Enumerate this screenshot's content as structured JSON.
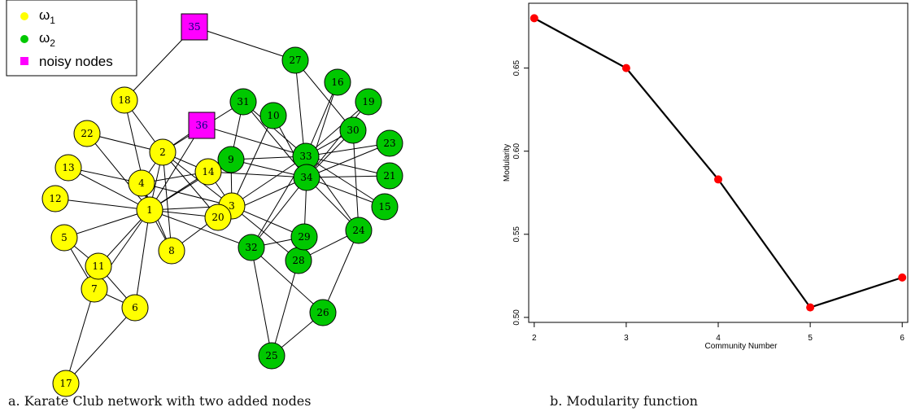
{
  "network": {
    "caption": "a. Karate Club network with two added nodes",
    "legend": [
      {
        "label": "ω",
        "sub": "1",
        "color": "#ffff00",
        "shape": "circle"
      },
      {
        "label": "ω",
        "sub": "2",
        "color": "#00c800",
        "shape": "circle"
      },
      {
        "label": "noisy nodes",
        "color": "#ff00ff",
        "shape": "square"
      }
    ],
    "colors": {
      "group1": "#ffff00",
      "group2": "#00c800",
      "noisy": "#ff00ff",
      "edge": "#000000"
    },
    "nodes": [
      {
        "id": "1",
        "group": 1
      },
      {
        "id": "2",
        "group": 1
      },
      {
        "id": "3",
        "group": 1
      },
      {
        "id": "4",
        "group": 1
      },
      {
        "id": "5",
        "group": 1
      },
      {
        "id": "6",
        "group": 1
      },
      {
        "id": "7",
        "group": 1
      },
      {
        "id": "8",
        "group": 1
      },
      {
        "id": "9",
        "group": 2
      },
      {
        "id": "10",
        "group": 2
      },
      {
        "id": "11",
        "group": 1
      },
      {
        "id": "12",
        "group": 1
      },
      {
        "id": "13",
        "group": 1
      },
      {
        "id": "14",
        "group": 1
      },
      {
        "id": "15",
        "group": 2
      },
      {
        "id": "16",
        "group": 2
      },
      {
        "id": "17",
        "group": 1
      },
      {
        "id": "18",
        "group": 1
      },
      {
        "id": "19",
        "group": 2
      },
      {
        "id": "20",
        "group": 1
      },
      {
        "id": "21",
        "group": 2
      },
      {
        "id": "22",
        "group": 1
      },
      {
        "id": "23",
        "group": 2
      },
      {
        "id": "24",
        "group": 2
      },
      {
        "id": "25",
        "group": 2
      },
      {
        "id": "26",
        "group": 2
      },
      {
        "id": "27",
        "group": 2
      },
      {
        "id": "28",
        "group": 2
      },
      {
        "id": "29",
        "group": 2
      },
      {
        "id": "30",
        "group": 2
      },
      {
        "id": "31",
        "group": 2
      },
      {
        "id": "32",
        "group": 2
      },
      {
        "id": "33",
        "group": 2
      },
      {
        "id": "34",
        "group": 2
      },
      {
        "id": "35",
        "group": "noisy"
      },
      {
        "id": "36",
        "group": "noisy"
      }
    ],
    "edges": [
      [
        "1",
        "2"
      ],
      [
        "1",
        "3"
      ],
      [
        "1",
        "4"
      ],
      [
        "1",
        "5"
      ],
      [
        "1",
        "6"
      ],
      [
        "1",
        "7"
      ],
      [
        "1",
        "8"
      ],
      [
        "1",
        "9"
      ],
      [
        "1",
        "11"
      ],
      [
        "1",
        "12"
      ],
      [
        "1",
        "13"
      ],
      [
        "1",
        "14"
      ],
      [
        "1",
        "18"
      ],
      [
        "1",
        "20"
      ],
      [
        "1",
        "22"
      ],
      [
        "1",
        "32"
      ],
      [
        "2",
        "3"
      ],
      [
        "2",
        "4"
      ],
      [
        "2",
        "8"
      ],
      [
        "2",
        "14"
      ],
      [
        "2",
        "18"
      ],
      [
        "2",
        "20"
      ],
      [
        "2",
        "22"
      ],
      [
        "2",
        "31"
      ],
      [
        "3",
        "4"
      ],
      [
        "3",
        "8"
      ],
      [
        "3",
        "9"
      ],
      [
        "3",
        "10"
      ],
      [
        "3",
        "14"
      ],
      [
        "3",
        "28"
      ],
      [
        "3",
        "29"
      ],
      [
        "3",
        "33"
      ],
      [
        "4",
        "8"
      ],
      [
        "4",
        "13"
      ],
      [
        "4",
        "14"
      ],
      [
        "5",
        "7"
      ],
      [
        "5",
        "11"
      ],
      [
        "6",
        "7"
      ],
      [
        "6",
        "11"
      ],
      [
        "6",
        "17"
      ],
      [
        "7",
        "17"
      ],
      [
        "9",
        "31"
      ],
      [
        "9",
        "33"
      ],
      [
        "9",
        "34"
      ],
      [
        "10",
        "34"
      ],
      [
        "14",
        "34"
      ],
      [
        "15",
        "33"
      ],
      [
        "15",
        "34"
      ],
      [
        "16",
        "33"
      ],
      [
        "16",
        "34"
      ],
      [
        "19",
        "33"
      ],
      [
        "19",
        "34"
      ],
      [
        "20",
        "34"
      ],
      [
        "21",
        "33"
      ],
      [
        "21",
        "34"
      ],
      [
        "23",
        "33"
      ],
      [
        "23",
        "34"
      ],
      [
        "24",
        "26"
      ],
      [
        "24",
        "28"
      ],
      [
        "24",
        "30"
      ],
      [
        "24",
        "33"
      ],
      [
        "24",
        "34"
      ],
      [
        "25",
        "26"
      ],
      [
        "25",
        "28"
      ],
      [
        "25",
        "32"
      ],
      [
        "26",
        "32"
      ],
      [
        "27",
        "30"
      ],
      [
        "27",
        "34"
      ],
      [
        "29",
        "32"
      ],
      [
        "29",
        "34"
      ],
      [
        "30",
        "33"
      ],
      [
        "30",
        "34"
      ],
      [
        "31",
        "33"
      ],
      [
        "31",
        "34"
      ],
      [
        "32",
        "33"
      ],
      [
        "32",
        "34"
      ],
      [
        "33",
        "34"
      ],
      [
        "35",
        "18"
      ],
      [
        "35",
        "27"
      ],
      [
        "36",
        "2"
      ],
      [
        "36",
        "1"
      ],
      [
        "36",
        "33"
      ]
    ]
  },
  "chart_data": {
    "type": "line",
    "caption": "b. Modularity function",
    "xlabel": "Community Number",
    "ylabel": "Modularity",
    "x": [
      2,
      3,
      4,
      5,
      6
    ],
    "y": [
      0.68,
      0.65,
      0.583,
      0.506,
      0.524
    ],
    "xticks": [
      "2",
      "3",
      "4",
      "5",
      "6"
    ],
    "yticks": [
      "0.50",
      "0.55",
      "0.60",
      "0.65"
    ],
    "xlim": [
      1.94,
      6.06
    ],
    "ylim": [
      0.497,
      0.689
    ],
    "grid": false,
    "line_color": "#000000",
    "point_color": "#ff0000"
  }
}
